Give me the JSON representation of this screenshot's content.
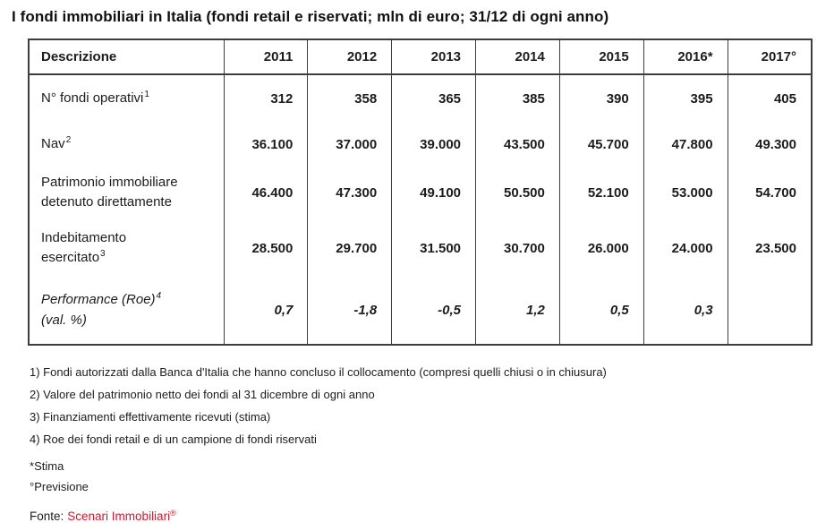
{
  "title": "I fondi immobiliari in Italia (fondi retail e riservati; mln di euro; 31/12 di ogni anno)",
  "table": {
    "header": {
      "desc": "Descrizione",
      "years": [
        "2011",
        "2012",
        "2013",
        "2014",
        "2015",
        "2016*",
        "2017°"
      ]
    },
    "rows": [
      {
        "lines": [
          {
            "t": "N° fondi operativi",
            "s": "1"
          }
        ],
        "values": [
          "312",
          "358",
          "365",
          "385",
          "390",
          "395",
          "405"
        ]
      },
      {
        "lines": [
          {
            "t": "Nav",
            "s": "2"
          }
        ],
        "values": [
          "36.100",
          "37.000",
          "39.000",
          "43.500",
          "45.700",
          "47.800",
          "49.300"
        ]
      },
      {
        "lines": [
          {
            "t": "Patrimonio immobiliare",
            "s": ""
          },
          {
            "t": "detenuto direttamente",
            "s": ""
          }
        ],
        "values": [
          "46.400",
          "47.300",
          "49.100",
          "50.500",
          "52.100",
          "53.000",
          "54.700"
        ]
      },
      {
        "lines": [
          {
            "t": "Indebitamento",
            "s": ""
          },
          {
            "t": "esercitato",
            "s": "3"
          }
        ],
        "values": [
          "28.500",
          "29.700",
          "31.500",
          "30.700",
          "26.000",
          "24.000",
          "23.500"
        ]
      },
      {
        "lines": [
          {
            "t": "Performance (Roe)",
            "s": "4"
          },
          {
            "t": "(val. %)",
            "s": ""
          }
        ],
        "values": [
          "0,7",
          "-1,8",
          "-0,5",
          "1,2",
          "0,5",
          "0,3",
          ""
        ]
      }
    ]
  },
  "footnotes": [
    "1) Fondi autorizzati dalla Banca d'Italia che hanno concluso il collocamento (compresi quelli chiusi o in chiusura)",
    "2) Valore del patrimonio netto dei fondi al 31 dicembre di ogni anno",
    "3) Finanziamenti effettivamente ricevuti (stima)",
    "4) Roe dei fondi retail e di un campione di fondi riservati"
  ],
  "legend": [
    {
      "symbol": "*",
      "text": "Stima"
    },
    {
      "symbol": "°",
      "text": "Previsione"
    }
  ],
  "source": {
    "label": "Fonte:",
    "name": "Scenari Immobiliari",
    "mark": "®"
  },
  "colors": {
    "source_red": "#c2202e",
    "table_border": "#3d3d3d"
  }
}
